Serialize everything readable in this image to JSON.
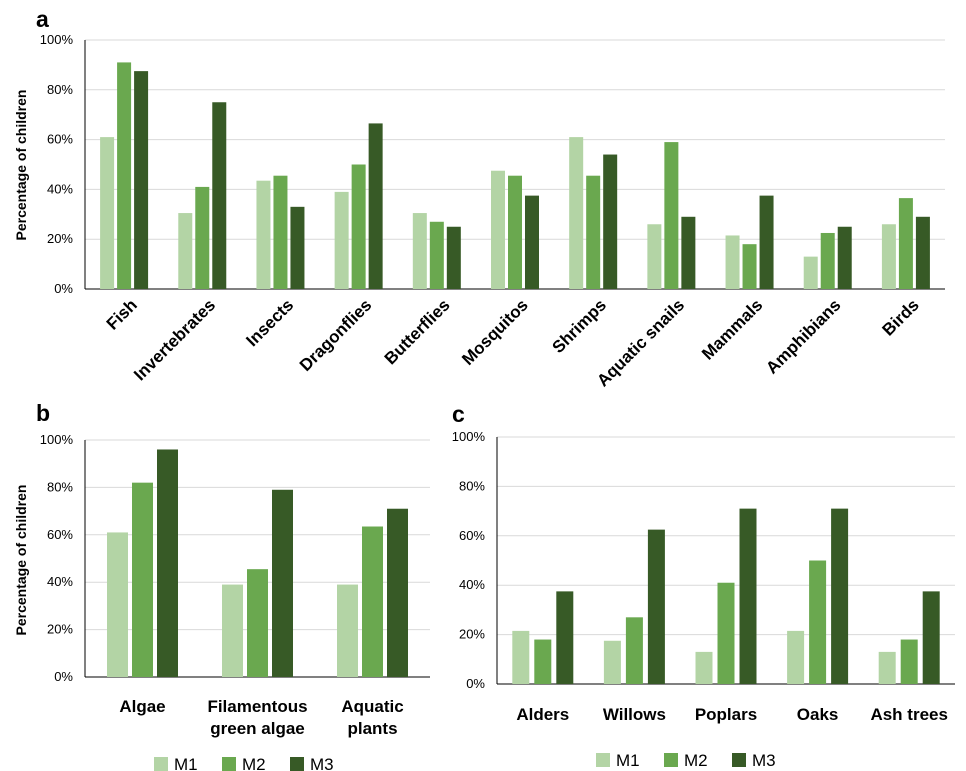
{
  "colors": {
    "M1": "#b3d4a5",
    "M2": "#6aa84f",
    "M3": "#375a26"
  },
  "legend": [
    "M1",
    "M2",
    "M3"
  ],
  "chart_data": [
    {
      "panel": "a",
      "type": "bar",
      "ylabel": "Percentage of children",
      "ylim": [
        0,
        100
      ],
      "yticks": [
        "0%",
        "20%",
        "40%",
        "60%",
        "80%",
        "100%"
      ],
      "categories": [
        "Fish",
        "Invertebrates",
        "Insects",
        "Dragonflies",
        "Butterflies",
        "Mosquitos",
        "Shrimps",
        "Aquatic snails",
        "Mammals",
        "Amphibians",
        "Birds"
      ],
      "series": [
        {
          "name": "M1",
          "values": [
            61,
            30.5,
            43.5,
            39,
            30.5,
            47.5,
            61,
            26,
            21.5,
            13,
            26
          ]
        },
        {
          "name": "M2",
          "values": [
            91,
            41,
            45.5,
            50,
            27,
            45.5,
            45.5,
            59,
            18,
            22.5,
            36.5
          ]
        },
        {
          "name": "M3",
          "values": [
            87.5,
            75,
            33,
            66.5,
            25,
            37.5,
            54,
            29,
            37.5,
            25,
            29
          ]
        }
      ],
      "grid": true
    },
    {
      "panel": "b",
      "type": "bar",
      "ylabel": "Percentage of children",
      "ylim": [
        0,
        100
      ],
      "yticks": [
        "0%",
        "20%",
        "40%",
        "60%",
        "80%",
        "100%"
      ],
      "categories": [
        [
          "Algae"
        ],
        [
          "Filamentous",
          "green algae"
        ],
        [
          "Aquatic",
          "plants"
        ]
      ],
      "series": [
        {
          "name": "M1",
          "values": [
            61,
            39,
            39
          ]
        },
        {
          "name": "M2",
          "values": [
            82,
            45.5,
            63.5
          ]
        },
        {
          "name": "M3",
          "values": [
            96,
            79,
            71
          ]
        }
      ],
      "legend_position": "bottom",
      "grid": true
    },
    {
      "panel": "c",
      "type": "bar",
      "ylabel": "",
      "ylim": [
        0,
        100
      ],
      "yticks": [
        "0%",
        "20%",
        "40%",
        "60%",
        "80%",
        "100%"
      ],
      "categories": [
        "Alders",
        "Willows",
        "Poplars",
        "Oaks",
        "Ash trees"
      ],
      "series": [
        {
          "name": "M1",
          "values": [
            21.5,
            17.5,
            13,
            21.5,
            13
          ]
        },
        {
          "name": "M2",
          "values": [
            18,
            27,
            41,
            50,
            18
          ]
        },
        {
          "name": "M3",
          "values": [
            37.5,
            62.5,
            71,
            71,
            37.5
          ]
        }
      ],
      "legend_position": "bottom",
      "grid": true
    }
  ]
}
